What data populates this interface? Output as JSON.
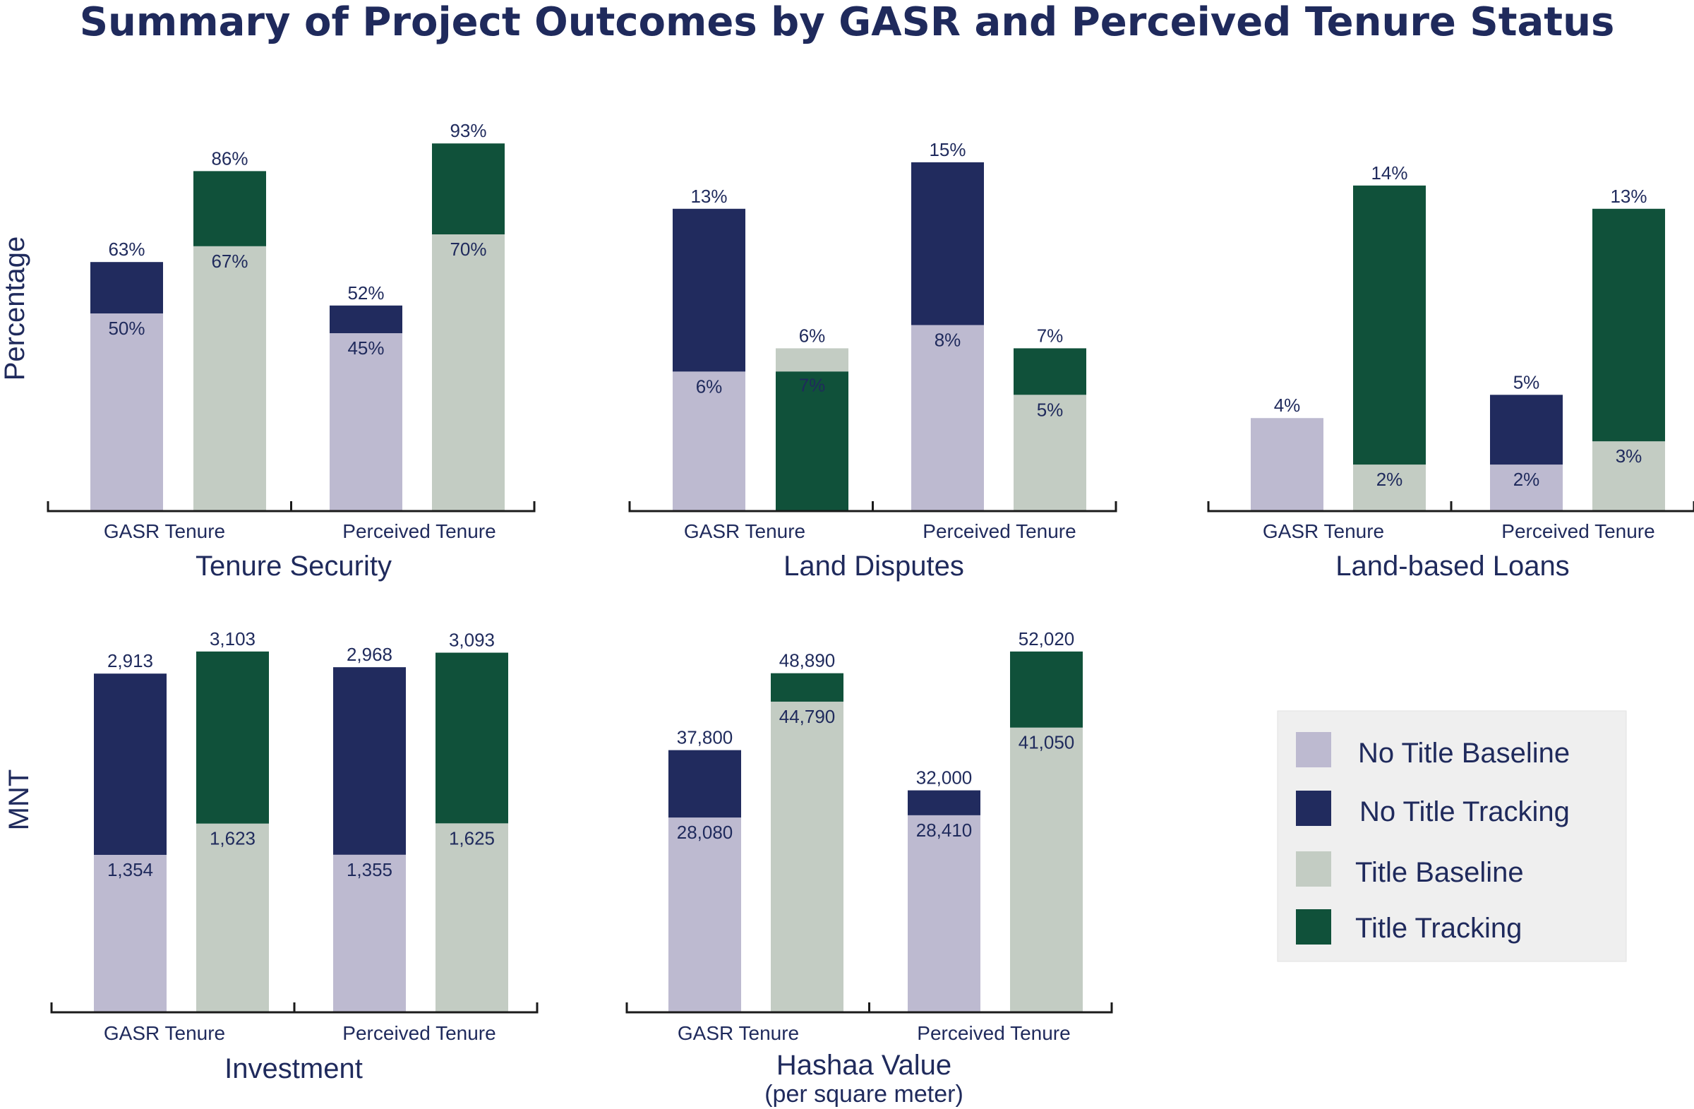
{
  "title": "Summary of Project Outcomes by GASR and Perceived Tenure Status",
  "ylabels": {
    "top": "Percentage",
    "bottom": "MNT"
  },
  "colors": {
    "no_title_baseline": "#bdbad0",
    "no_title_tracking": "#212b5e",
    "title_baseline": "#c3ccc3",
    "title_tracking": "#10513a",
    "text": "#1f2a5c"
  },
  "legend": [
    {
      "label": "No Title Baseline",
      "color": "#bdbad0"
    },
    {
      "label": "No Title Tracking",
      "color": "#212b5e"
    },
    {
      "label": "Title Baseline",
      "color": "#c3ccc3"
    },
    {
      "label": "Title Tracking",
      "color": "#10513a"
    }
  ],
  "chart_data": [
    {
      "type": "bar",
      "title": "Tenure Security",
      "subtitle": "",
      "categories": [
        "GASR Tenure",
        "Perceived Tenure"
      ],
      "ylim": [
        0,
        100
      ],
      "bars": [
        {
          "group": "GASR Tenure",
          "baseline_label": "No Title Baseline",
          "tracking_label": "No Title Tracking",
          "baseline": 50,
          "tracking": 63,
          "baseline_text": "50%",
          "tracking_text": "63%"
        },
        {
          "group": "GASR Tenure",
          "baseline_label": "Title Baseline",
          "tracking_label": "Title Tracking",
          "baseline": 67,
          "tracking": 86,
          "baseline_text": "67%",
          "tracking_text": "86%"
        },
        {
          "group": "Perceived Tenure",
          "baseline_label": "No Title Baseline",
          "tracking_label": "No Title Tracking",
          "baseline": 45,
          "tracking": 52,
          "baseline_text": "45%",
          "tracking_text": "52%"
        },
        {
          "group": "Perceived Tenure",
          "baseline_label": "Title Baseline",
          "tracking_label": "Title Tracking",
          "baseline": 70,
          "tracking": 93,
          "baseline_text": "70%",
          "tracking_text": "93%"
        }
      ]
    },
    {
      "type": "bar",
      "title": "Land Disputes",
      "subtitle": "",
      "categories": [
        "GASR Tenure",
        "Perceived Tenure"
      ],
      "ylim": [
        0,
        17
      ],
      "bars": [
        {
          "group": "GASR Tenure",
          "baseline_label": "No Title Baseline",
          "tracking_label": "No Title Tracking",
          "baseline": 6,
          "tracking": 13,
          "baseline_text": "6%",
          "tracking_text": "13%"
        },
        {
          "group": "GASR Tenure",
          "baseline_label": "Title Baseline",
          "tracking_label": "Title Tracking",
          "baseline": 7,
          "tracking": 6,
          "baseline_text": "7%",
          "tracking_text": "6%"
        },
        {
          "group": "Perceived Tenure",
          "baseline_label": "No Title Baseline",
          "tracking_label": "No Title Tracking",
          "baseline": 8,
          "tracking": 15,
          "baseline_text": "8%",
          "tracking_text": "15%"
        },
        {
          "group": "Perceived Tenure",
          "baseline_label": "Title Baseline",
          "tracking_label": "Title Tracking",
          "baseline": 5,
          "tracking": 7,
          "baseline_text": "5%",
          "tracking_text": "7%"
        }
      ]
    },
    {
      "type": "bar",
      "title": "Land-based Loans",
      "subtitle": "",
      "categories": [
        "GASR Tenure",
        "Perceived Tenure"
      ],
      "ylim": [
        0,
        17
      ],
      "bars": [
        {
          "group": "GASR Tenure",
          "baseline_label": "No Title Baseline",
          "tracking_label": "No Title Tracking",
          "baseline": 4,
          "tracking": null,
          "baseline_text": "",
          "tracking_text": "4%"
        },
        {
          "group": "GASR Tenure",
          "baseline_label": "Title Baseline",
          "tracking_label": "Title Tracking",
          "baseline": 2,
          "tracking": 14,
          "baseline_text": "2%",
          "tracking_text": "14%"
        },
        {
          "group": "Perceived Tenure",
          "baseline_label": "No Title Baseline",
          "tracking_label": "No Title Tracking",
          "baseline": 2,
          "tracking": 5,
          "baseline_text": "2%",
          "tracking_text": "5%"
        },
        {
          "group": "Perceived Tenure",
          "baseline_label": "Title Baseline",
          "tracking_label": "Title Tracking",
          "baseline": 3,
          "tracking": 13,
          "baseline_text": "3%",
          "tracking_text": "13%"
        }
      ]
    },
    {
      "type": "bar",
      "title": "Investment",
      "subtitle": "",
      "categories": [
        "GASR Tenure",
        "Perceived Tenure"
      ],
      "ylim": [
        0,
        3400
      ],
      "bars": [
        {
          "group": "GASR Tenure",
          "baseline_label": "No Title Baseline",
          "tracking_label": "No Title Tracking",
          "baseline": 1354,
          "tracking": 2913,
          "baseline_text": "1,354",
          "tracking_text": "2,913"
        },
        {
          "group": "GASR Tenure",
          "baseline_label": "Title Baseline",
          "tracking_label": "Title Tracking",
          "baseline": 1623,
          "tracking": 3103,
          "baseline_text": "1,623",
          "tracking_text": "3,103"
        },
        {
          "group": "Perceived Tenure",
          "baseline_label": "No Title Baseline",
          "tracking_label": "No Title Tracking",
          "baseline": 1355,
          "tracking": 2968,
          "baseline_text": "1,355",
          "tracking_text": "2,968"
        },
        {
          "group": "Perceived Tenure",
          "baseline_label": "Title Baseline",
          "tracking_label": "Title Tracking",
          "baseline": 1625,
          "tracking": 3093,
          "baseline_text": "1,625",
          "tracking_text": "3,093"
        }
      ]
    },
    {
      "type": "bar",
      "title": "Hashaa Value",
      "subtitle": "(per square meter)",
      "categories": [
        "GASR Tenure",
        "Perceived Tenure"
      ],
      "ylim": [
        0,
        57000
      ],
      "bars": [
        {
          "group": "GASR Tenure",
          "baseline_label": "No Title Baseline",
          "tracking_label": "No Title Tracking",
          "baseline": 28080,
          "tracking": 37800,
          "baseline_text": "28,080",
          "tracking_text": "37,800"
        },
        {
          "group": "GASR Tenure",
          "baseline_label": "Title Baseline",
          "tracking_label": "Title Tracking",
          "baseline": 44790,
          "tracking": 48890,
          "baseline_text": "44,790",
          "tracking_text": "48,890"
        },
        {
          "group": "Perceived Tenure",
          "baseline_label": "No Title Baseline",
          "tracking_label": "No Title Tracking",
          "baseline": 28410,
          "tracking": 32000,
          "baseline_text": "28,410",
          "tracking_text": "32,000"
        },
        {
          "group": "Perceived Tenure",
          "baseline_label": "Title Baseline",
          "tracking_label": "Title Tracking",
          "baseline": 41050,
          "tracking": 52020,
          "baseline_text": "41,050",
          "tracking_text": "52,020"
        }
      ]
    }
  ]
}
